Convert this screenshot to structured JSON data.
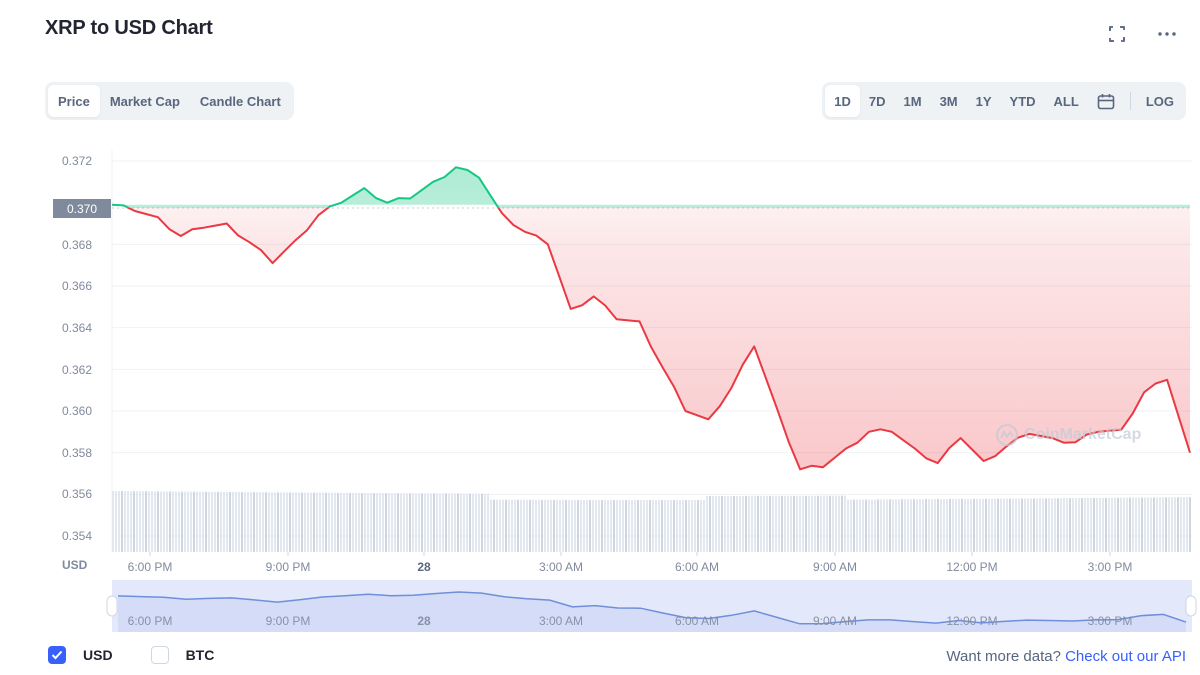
{
  "header": {
    "title": "XRP to USD Chart",
    "fullscreen_icon": "expand-icon",
    "more_icon": "more-horizontal-icon"
  },
  "chart_type_tabs": [
    {
      "label": "Price",
      "active": true
    },
    {
      "label": "Market Cap",
      "active": false
    },
    {
      "label": "Candle Chart",
      "active": false
    }
  ],
  "range_tabs": [
    {
      "label": "1D",
      "active": true
    },
    {
      "label": "7D",
      "active": false
    },
    {
      "label": "1M",
      "active": false
    },
    {
      "label": "3M",
      "active": false
    },
    {
      "label": "1Y",
      "active": false
    },
    {
      "label": "YTD",
      "active": false
    },
    {
      "label": "ALL",
      "active": false
    }
  ],
  "calendar_icon": "calendar-icon",
  "log_label": "LOG",
  "axis": {
    "y_ticks": [
      "0.372",
      "0.370",
      "0.368",
      "0.366",
      "0.364",
      "0.362",
      "0.360",
      "0.358",
      "0.356",
      "0.354"
    ],
    "current_price_label": "0.370",
    "currency_label": "USD",
    "x_ticks": [
      "6:00 PM",
      "9:00 PM",
      "28",
      "3:00 AM",
      "6:00 AM",
      "9:00 AM",
      "12:00 PM",
      "3:00 PM"
    ]
  },
  "navigator": {
    "x_ticks": [
      "6:00 PM",
      "9:00 PM",
      "28",
      "3:00 AM",
      "6:00 AM",
      "9:00 AM",
      "12:00 PM",
      "3:00 PM"
    ]
  },
  "watermark": "CoinMarketCap",
  "legend": {
    "usd": {
      "label": "USD",
      "checked": true
    },
    "btc": {
      "label": "BTC",
      "checked": false
    }
  },
  "footer": {
    "prompt": "Want more data?",
    "link": "Check out our API"
  },
  "colors": {
    "up": "#16c784",
    "down": "#ea3943",
    "accent": "#3861fb",
    "navigator_line": "#6f8fd8",
    "navigator_fill": "#e3e8fb",
    "volume": "#dde2ea"
  },
  "chart_data": {
    "type": "line",
    "title": "XRP to USD Chart",
    "xlabel": "",
    "ylabel": "USD",
    "ylim": [
      0.3535,
      0.3725
    ],
    "reference_price": 0.3699,
    "grid": true,
    "x": [
      "4:45 PM",
      "5:15 PM",
      "5:45 PM",
      "6:15 PM",
      "6:45 PM",
      "7:15 PM",
      "7:45 PM",
      "8:15 PM",
      "8:45 PM",
      "9:15 PM",
      "9:45 PM",
      "10:15 PM",
      "10:45 PM",
      "11:15 PM",
      "11:45 PM",
      "12:15 AM",
      "12:45 AM",
      "1:15 AM",
      "1:45 AM",
      "2:15 AM",
      "2:45 AM",
      "3:15 AM",
      "3:45 AM",
      "4:15 AM",
      "4:45 AM",
      "5:15 AM",
      "5:45 AM",
      "6:15 AM",
      "6:45 AM",
      "7:15 AM",
      "7:45 AM",
      "8:15 AM",
      "8:45 AM",
      "9:15 AM",
      "9:45 AM",
      "10:15 AM",
      "10:45 AM",
      "11:15 AM",
      "11:45 AM",
      "12:15 PM",
      "12:45 PM",
      "1:15 PM",
      "1:45 PM",
      "2:15 PM",
      "2:45 PM",
      "3:15 PM",
      "3:45 PM",
      "4:15 PM"
    ],
    "series": [
      {
        "name": "XRP/USD",
        "values": [
          0.3699,
          0.3696,
          0.3693,
          0.3684,
          0.3688,
          0.369,
          0.3681,
          0.3671,
          0.3682,
          0.3694,
          0.37,
          0.3707,
          0.37,
          0.3702,
          0.371,
          0.3717,
          0.3712,
          0.3695,
          0.3686,
          0.368,
          0.3649,
          0.3655,
          0.3644,
          0.3643,
          0.3621,
          0.36,
          0.3596,
          0.3611,
          0.3631,
          0.3601,
          0.3572,
          0.3573,
          0.3582,
          0.359,
          0.359,
          0.3582,
          0.3575,
          0.3587,
          0.3576,
          0.3583,
          0.3589,
          0.3587,
          0.3585,
          0.359,
          0.3591,
          0.3609,
          0.3615,
          0.358
        ]
      }
    ],
    "annotations": [
      "current price marker 0.370",
      "CoinMarketCap watermark"
    ]
  }
}
